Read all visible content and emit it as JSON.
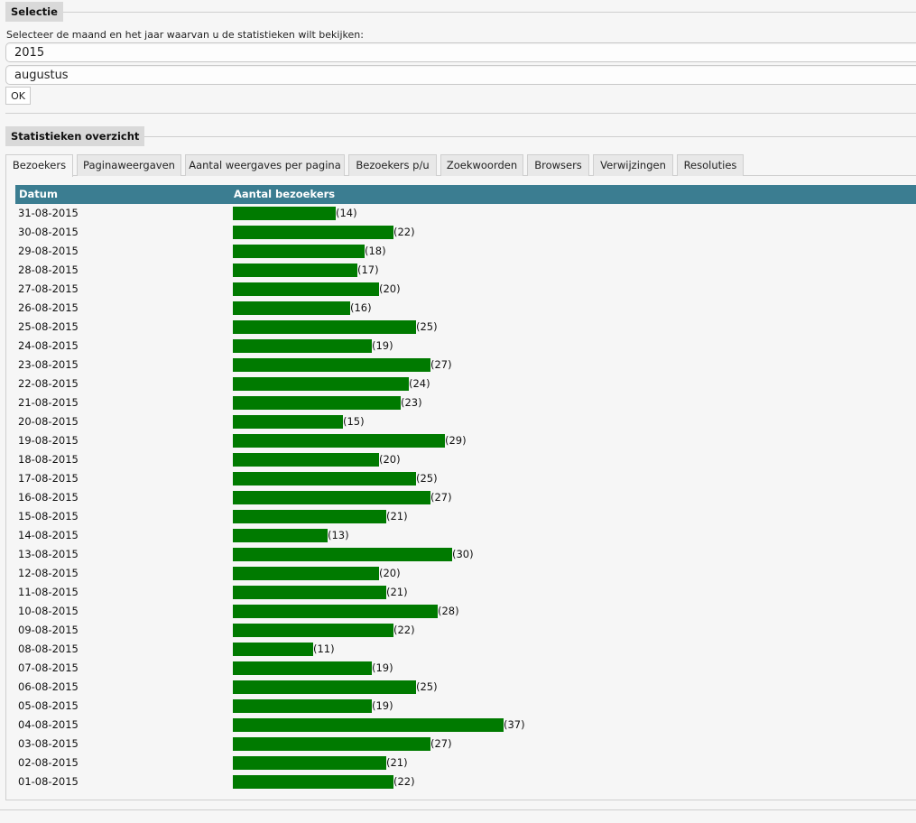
{
  "selectie": {
    "legend": "Selectie",
    "instruction": "Selecteer de maand en het jaar waarvan u de statistieken wilt bekijken:",
    "year": "2015",
    "month": "augustus",
    "ok_label": "OK"
  },
  "overzicht": {
    "legend": "Statistieken overzicht",
    "tabs": [
      {
        "label": "Bezoekers",
        "active": true
      },
      {
        "label": "Paginaweergaven",
        "active": false
      },
      {
        "label": "Aantal weergaves per pagina",
        "active": false
      },
      {
        "label": "Bezoekers p/u",
        "active": false
      },
      {
        "label": "Zoekwoorden",
        "active": false
      },
      {
        "label": "Browsers",
        "active": false
      },
      {
        "label": "Verwijzingen",
        "active": false
      },
      {
        "label": "Resoluties",
        "active": false
      }
    ],
    "table": {
      "header_date": "Datum",
      "header_visitors": "Aantal bezoekers",
      "bar_color": "#007a00",
      "header_color": "#3b7d91"
    }
  },
  "chart_data": {
    "type": "bar",
    "categories": [
      "31-08-2015",
      "30-08-2015",
      "29-08-2015",
      "28-08-2015",
      "27-08-2015",
      "26-08-2015",
      "25-08-2015",
      "24-08-2015",
      "23-08-2015",
      "22-08-2015",
      "21-08-2015",
      "20-08-2015",
      "19-08-2015",
      "18-08-2015",
      "17-08-2015",
      "16-08-2015",
      "15-08-2015",
      "14-08-2015",
      "13-08-2015",
      "12-08-2015",
      "11-08-2015",
      "10-08-2015",
      "09-08-2015",
      "08-08-2015",
      "07-08-2015",
      "06-08-2015",
      "05-08-2015",
      "04-08-2015",
      "03-08-2015",
      "02-08-2015",
      "01-08-2015"
    ],
    "values": [
      14,
      22,
      18,
      17,
      20,
      16,
      25,
      19,
      27,
      24,
      23,
      15,
      29,
      20,
      25,
      27,
      21,
      13,
      30,
      20,
      21,
      28,
      22,
      11,
      19,
      25,
      19,
      37,
      27,
      21,
      22
    ],
    "value_labels": [
      "(14)",
      "(22)",
      "(18)",
      "(17)",
      "(20)",
      "(16)",
      "(25)",
      "(19)",
      "(27)",
      "(24)",
      "(23)",
      "(15)",
      "(29)",
      "(20)",
      "(25)",
      "(27)",
      "(21)",
      "(13)",
      "(30)",
      "(20)",
      "(21)",
      "(28)",
      "(22)",
      "(11)",
      "(19)",
      "(25)",
      "(19)",
      "(37)",
      "(27)",
      "(21)",
      "(22)"
    ],
    "orientation": "horizontal"
  }
}
